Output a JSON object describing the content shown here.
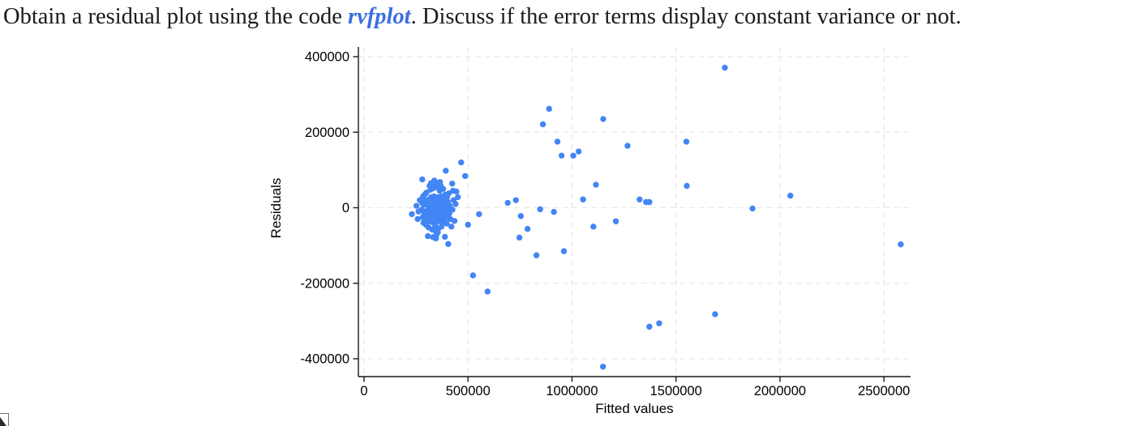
{
  "question": {
    "before": "Obtain a residual plot using the code ",
    "code": "rvfplot",
    "after": ". Discuss if the error terms display constant variance or not.",
    "code_color": "#3a6fe0"
  },
  "chart_data": {
    "type": "scatter",
    "title": "",
    "xlabel": "Fitted values",
    "ylabel": "Residuals",
    "xlim": [
      0,
      2630000
    ],
    "ylim": [
      -450000,
      420000
    ],
    "grid": "dashed, both axes, light gray",
    "legend": "none",
    "marker_color": "#4285f4",
    "axis_color": "#1a1a1a",
    "grid_color": "#e9e9e9",
    "x_ticks": {
      "values": [
        0,
        500000,
        1000000,
        1500000,
        2000000,
        2500000
      ],
      "labels": [
        "0",
        "500000",
        "1000000",
        "1500000",
        "2000000",
        "2500000"
      ]
    },
    "y_ticks": {
      "values": [
        400000,
        200000,
        0,
        -200000,
        -400000
      ],
      "labels": [
        "400000",
        "200000",
        "0",
        "-200000",
        "-400000"
      ]
    },
    "points": [
      [
        302000,
        -8000
      ],
      [
        305000,
        10000
      ],
      [
        308000,
        -22000
      ],
      [
        310000,
        3000
      ],
      [
        312000,
        22000
      ],
      [
        314000,
        -35000
      ],
      [
        315000,
        -12000
      ],
      [
        317000,
        8000
      ],
      [
        319000,
        -28000
      ],
      [
        320000,
        15000
      ],
      [
        322000,
        -2000
      ],
      [
        323000,
        28000
      ],
      [
        325000,
        -18000
      ],
      [
        326000,
        5000
      ],
      [
        328000,
        -38000
      ],
      [
        329000,
        12000
      ],
      [
        330000,
        -8000
      ],
      [
        332000,
        20000
      ],
      [
        333000,
        -25000
      ],
      [
        335000,
        2000
      ],
      [
        336000,
        30000
      ],
      [
        337000,
        -15000
      ],
      [
        339000,
        8000
      ],
      [
        340000,
        -32000
      ],
      [
        341000,
        18000
      ],
      [
        343000,
        -5000
      ],
      [
        344000,
        25000
      ],
      [
        345000,
        -20000
      ],
      [
        347000,
        10000
      ],
      [
        348000,
        -38000
      ],
      [
        349000,
        0
      ],
      [
        351000,
        15000
      ],
      [
        352000,
        -12000
      ],
      [
        354000,
        28000
      ],
      [
        355000,
        -28000
      ],
      [
        356000,
        5000
      ],
      [
        358000,
        -18000
      ],
      [
        359000,
        20000
      ],
      [
        360000,
        -2000
      ],
      [
        362000,
        -35000
      ],
      [
        363000,
        12000
      ],
      [
        365000,
        -8000
      ],
      [
        366000,
        25000
      ],
      [
        367000,
        -22000
      ],
      [
        369000,
        8000
      ],
      [
        370000,
        -15000
      ],
      [
        371000,
        30000
      ],
      [
        373000,
        -5000
      ],
      [
        374000,
        18000
      ],
      [
        376000,
        -28000
      ],
      [
        377000,
        2000
      ],
      [
        378000,
        -40000
      ],
      [
        380000,
        10000
      ],
      [
        277000,
        -5000
      ],
      [
        280000,
        12000
      ],
      [
        282000,
        -25000
      ],
      [
        284000,
        30000
      ],
      [
        286000,
        -40000
      ],
      [
        288000,
        8000
      ],
      [
        290000,
        -15000
      ],
      [
        292000,
        35000
      ],
      [
        294000,
        -30000
      ],
      [
        296000,
        18000
      ],
      [
        298000,
        -45000
      ],
      [
        300000,
        40000
      ],
      [
        383000,
        -10000
      ],
      [
        385000,
        22000
      ],
      [
        387000,
        -30000
      ],
      [
        389000,
        5000
      ],
      [
        391000,
        35000
      ],
      [
        393000,
        -20000
      ],
      [
        395000,
        12000
      ],
      [
        397000,
        -42000
      ],
      [
        399000,
        28000
      ],
      [
        401000,
        -8000
      ],
      [
        403000,
        15000
      ],
      [
        405000,
        -25000
      ],
      [
        408000,
        38000
      ],
      [
        410000,
        -15000
      ],
      [
        412000,
        5000
      ],
      [
        415000,
        -30000
      ],
      [
        310000,
        -52000
      ],
      [
        320000,
        48000
      ],
      [
        328000,
        -58000
      ],
      [
        335000,
        52000
      ],
      [
        342000,
        -48000
      ],
      [
        350000,
        55000
      ],
      [
        357000,
        -55000
      ],
      [
        364000,
        45000
      ],
      [
        372000,
        -50000
      ],
      [
        380000,
        50000
      ],
      [
        315000,
        58000
      ],
      [
        345000,
        -62000
      ],
      [
        368000,
        58000
      ],
      [
        330000,
        62000
      ],
      [
        355000,
        -65000
      ],
      [
        322000,
        65000
      ],
      [
        338000,
        72000
      ],
      [
        352000,
        62000
      ],
      [
        365000,
        68000
      ],
      [
        348000,
        -72000
      ],
      [
        332000,
        -78000
      ],
      [
        262000,
        -10000
      ],
      [
        268000,
        20000
      ],
      [
        258000,
        -30000
      ],
      [
        252000,
        5000
      ],
      [
        425000,
        -5000
      ],
      [
        430000,
        20000
      ],
      [
        435000,
        -35000
      ],
      [
        440000,
        10000
      ],
      [
        420000,
        -50000
      ],
      [
        428000,
        45000
      ],
      [
        467000,
        120000
      ],
      [
        486000,
        84000
      ],
      [
        393000,
        98000
      ],
      [
        424000,
        64000
      ],
      [
        444000,
        43000
      ],
      [
        280000,
        75000
      ],
      [
        451000,
        28000
      ],
      [
        230000,
        -17000
      ],
      [
        553000,
        -17000
      ],
      [
        500000,
        -45000
      ],
      [
        307000,
        -75000
      ],
      [
        346000,
        -81000
      ],
      [
        389000,
        -77000
      ],
      [
        405000,
        -96000
      ],
      [
        890000,
        262000
      ],
      [
        860000,
        221000
      ],
      [
        1150000,
        235000
      ],
      [
        930000,
        175000
      ],
      [
        950000,
        138000
      ],
      [
        1006000,
        138000
      ],
      [
        1032000,
        149000
      ],
      [
        1267000,
        164000
      ],
      [
        1550000,
        175000
      ],
      [
        1735000,
        371000
      ],
      [
        1115000,
        61000
      ],
      [
        1552000,
        58000
      ],
      [
        1053000,
        22000
      ],
      [
        1325000,
        22000
      ],
      [
        1356000,
        15000
      ],
      [
        1372000,
        15000
      ],
      [
        691000,
        13000
      ],
      [
        730000,
        20000
      ],
      [
        754000,
        -22000
      ],
      [
        847000,
        -4000
      ],
      [
        913000,
        -11000
      ],
      [
        1211000,
        -36000
      ],
      [
        1103000,
        -50000
      ],
      [
        2050000,
        32000
      ],
      [
        1868000,
        -2000
      ],
      [
        786000,
        -56000
      ],
      [
        747000,
        -79000
      ],
      [
        829000,
        -126000
      ],
      [
        961000,
        -115000
      ],
      [
        524000,
        -179000
      ],
      [
        594000,
        -222000
      ],
      [
        1372000,
        -315000
      ],
      [
        1419000,
        -306000
      ],
      [
        1688000,
        -282000
      ],
      [
        1149000,
        -421000
      ],
      [
        2581000,
        -97000
      ]
    ]
  }
}
